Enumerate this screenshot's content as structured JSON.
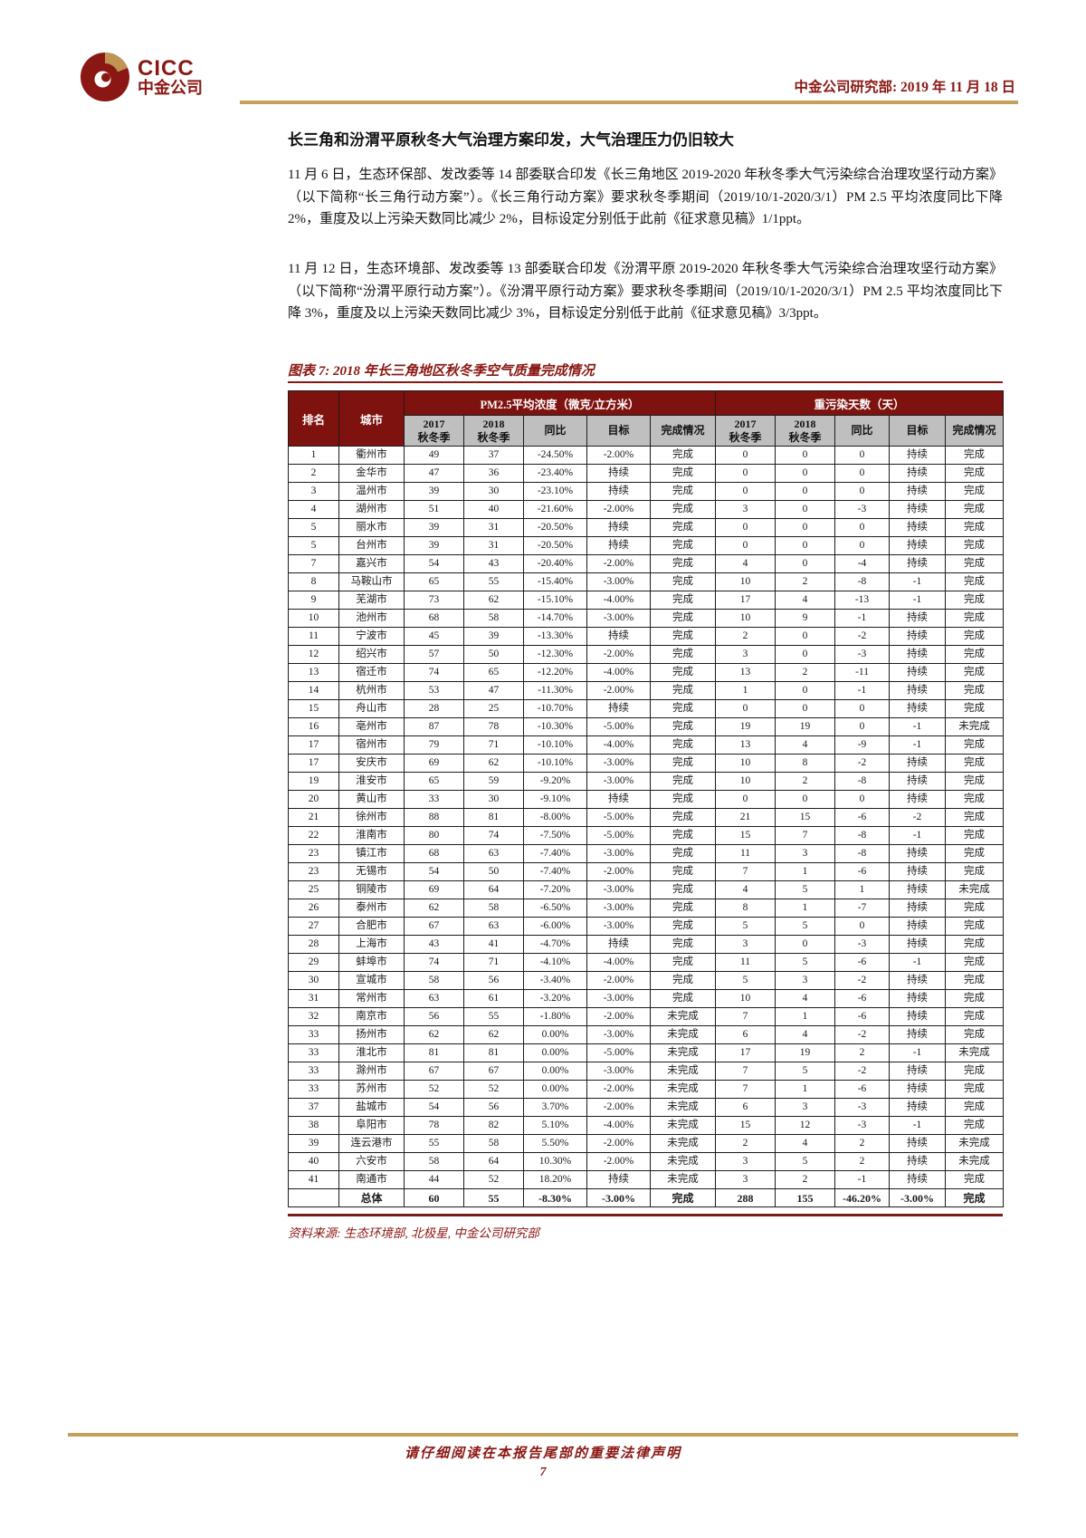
{
  "brand": {
    "logo_en": "CICC",
    "logo_cn": "中金公司"
  },
  "header": {
    "right_text": "中金公司研究部: 2019 年 11 月 18 日"
  },
  "content": {
    "title": "长三角和汾渭平原秋冬大气治理方案印发，大气治理压力仍旧较大",
    "paragraphs": [
      "11 月 6 日，生态环保部、发改委等 14 部委联合印发《长三角地区 2019-2020 年秋冬季大气污染综合治理攻坚行动方案》（以下简称“长三角行动方案”）。《长三角行动方案》要求秋冬季期间（2019/10/1-2020/3/1）PM 2.5 平均浓度同比下降 2%，重度及以上污染天数同比减少 2%，目标设定分别低于此前《征求意见稿》1/1ppt。",
      "11 月 12 日，生态环境部、发改委等 13 部委联合印发《汾渭平原 2019-2020 年秋冬季大气污染综合治理攻坚行动方案》（以下简称“汾渭平原行动方案”）。《汾渭平原行动方案》要求秋冬季期间（2019/10/1-2020/3/1）PM 2.5 平均浓度同比下降 3%，重度及以上污染天数同比减少 3%，目标设定分别低于此前《征求意见稿》3/3ppt。"
    ]
  },
  "figure": {
    "caption": "图表 7: 2018 年长三角地区秋冬季空气质量完成情况",
    "source": "资料来源: 生态环境部, 北极星, 中金公司研究部"
  },
  "table": {
    "columns": {
      "rank": "排名",
      "city": "城市",
      "group_pm": "PM2.5平均浓度（微克/立方米）",
      "group_days": "重污染天数（天）"
    },
    "sub_headers": [
      "2017\n秋冬季",
      "2018\n秋冬季",
      "同比",
      "目标",
      "完成情况",
      "2017\n秋冬季",
      "2018\n秋冬季",
      "同比",
      "目标",
      "完成情况"
    ],
    "rows": [
      [
        "1",
        "衢州市",
        "49",
        "37",
        "-24.50%",
        "-2.00%",
        "完成",
        "0",
        "0",
        "0",
        "持续",
        "完成"
      ],
      [
        "2",
        "金华市",
        "47",
        "36",
        "-23.40%",
        "持续",
        "完成",
        "0",
        "0",
        "0",
        "持续",
        "完成"
      ],
      [
        "3",
        "温州市",
        "39",
        "30",
        "-23.10%",
        "持续",
        "完成",
        "0",
        "0",
        "0",
        "持续",
        "完成"
      ],
      [
        "4",
        "湖州市",
        "51",
        "40",
        "-21.60%",
        "-2.00%",
        "完成",
        "3",
        "0",
        "-3",
        "持续",
        "完成"
      ],
      [
        "5",
        "丽水市",
        "39",
        "31",
        "-20.50%",
        "持续",
        "完成",
        "0",
        "0",
        "0",
        "持续",
        "完成"
      ],
      [
        "5",
        "台州市",
        "39",
        "31",
        "-20.50%",
        "持续",
        "完成",
        "0",
        "0",
        "0",
        "持续",
        "完成"
      ],
      [
        "7",
        "嘉兴市",
        "54",
        "43",
        "-20.40%",
        "-2.00%",
        "完成",
        "4",
        "0",
        "-4",
        "持续",
        "完成"
      ],
      [
        "8",
        "马鞍山市",
        "65",
        "55",
        "-15.40%",
        "-3.00%",
        "完成",
        "10",
        "2",
        "-8",
        "-1",
        "完成"
      ],
      [
        "9",
        "芜湖市",
        "73",
        "62",
        "-15.10%",
        "-4.00%",
        "完成",
        "17",
        "4",
        "-13",
        "-1",
        "完成"
      ],
      [
        "10",
        "池州市",
        "68",
        "58",
        "-14.70%",
        "-3.00%",
        "完成",
        "10",
        "9",
        "-1",
        "持续",
        "完成"
      ],
      [
        "11",
        "宁波市",
        "45",
        "39",
        "-13.30%",
        "持续",
        "完成",
        "2",
        "0",
        "-2",
        "持续",
        "完成"
      ],
      [
        "12",
        "绍兴市",
        "57",
        "50",
        "-12.30%",
        "-2.00%",
        "完成",
        "3",
        "0",
        "-3",
        "持续",
        "完成"
      ],
      [
        "13",
        "宿迁市",
        "74",
        "65",
        "-12.20%",
        "-4.00%",
        "完成",
        "13",
        "2",
        "-11",
        "持续",
        "完成"
      ],
      [
        "14",
        "杭州市",
        "53",
        "47",
        "-11.30%",
        "-2.00%",
        "完成",
        "1",
        "0",
        "-1",
        "持续",
        "完成"
      ],
      [
        "15",
        "舟山市",
        "28",
        "25",
        "-10.70%",
        "持续",
        "完成",
        "0",
        "0",
        "0",
        "持续",
        "完成"
      ],
      [
        "16",
        "亳州市",
        "87",
        "78",
        "-10.30%",
        "-5.00%",
        "完成",
        "19",
        "19",
        "0",
        "-1",
        "未完成"
      ],
      [
        "17",
        "宿州市",
        "79",
        "71",
        "-10.10%",
        "-4.00%",
        "完成",
        "13",
        "4",
        "-9",
        "-1",
        "完成"
      ],
      [
        "17",
        "安庆市",
        "69",
        "62",
        "-10.10%",
        "-3.00%",
        "完成",
        "10",
        "8",
        "-2",
        "持续",
        "完成"
      ],
      [
        "19",
        "淮安市",
        "65",
        "59",
        "-9.20%",
        "-3.00%",
        "完成",
        "10",
        "2",
        "-8",
        "持续",
        "完成"
      ],
      [
        "20",
        "黄山市",
        "33",
        "30",
        "-9.10%",
        "持续",
        "完成",
        "0",
        "0",
        "0",
        "持续",
        "完成"
      ],
      [
        "21",
        "徐州市",
        "88",
        "81",
        "-8.00%",
        "-5.00%",
        "完成",
        "21",
        "15",
        "-6",
        "-2",
        "完成"
      ],
      [
        "22",
        "淮南市",
        "80",
        "74",
        "-7.50%",
        "-5.00%",
        "完成",
        "15",
        "7",
        "-8",
        "-1",
        "完成"
      ],
      [
        "23",
        "镇江市",
        "68",
        "63",
        "-7.40%",
        "-3.00%",
        "完成",
        "11",
        "3",
        "-8",
        "持续",
        "完成"
      ],
      [
        "23",
        "无锡市",
        "54",
        "50",
        "-7.40%",
        "-2.00%",
        "完成",
        "7",
        "1",
        "-6",
        "持续",
        "完成"
      ],
      [
        "25",
        "铜陵市",
        "69",
        "64",
        "-7.20%",
        "-3.00%",
        "完成",
        "4",
        "5",
        "1",
        "持续",
        "未完成"
      ],
      [
        "26",
        "泰州市",
        "62",
        "58",
        "-6.50%",
        "-3.00%",
        "完成",
        "8",
        "1",
        "-7",
        "持续",
        "完成"
      ],
      [
        "27",
        "合肥市",
        "67",
        "63",
        "-6.00%",
        "-3.00%",
        "完成",
        "5",
        "5",
        "0",
        "持续",
        "完成"
      ],
      [
        "28",
        "上海市",
        "43",
        "41",
        "-4.70%",
        "持续",
        "完成",
        "3",
        "0",
        "-3",
        "持续",
        "完成"
      ],
      [
        "29",
        "蚌埠市",
        "74",
        "71",
        "-4.10%",
        "-4.00%",
        "完成",
        "11",
        "5",
        "-6",
        "-1",
        "完成"
      ],
      [
        "30",
        "宣城市",
        "58",
        "56",
        "-3.40%",
        "-2.00%",
        "完成",
        "5",
        "3",
        "-2",
        "持续",
        "完成"
      ],
      [
        "31",
        "常州市",
        "63",
        "61",
        "-3.20%",
        "-3.00%",
        "完成",
        "10",
        "4",
        "-6",
        "持续",
        "完成"
      ],
      [
        "32",
        "南京市",
        "56",
        "55",
        "-1.80%",
        "-2.00%",
        "未完成",
        "7",
        "1",
        "-6",
        "持续",
        "完成"
      ],
      [
        "33",
        "扬州市",
        "62",
        "62",
        "0.00%",
        "-3.00%",
        "未完成",
        "6",
        "4",
        "-2",
        "持续",
        "完成"
      ],
      [
        "33",
        "淮北市",
        "81",
        "81",
        "0.00%",
        "-5.00%",
        "未完成",
        "17",
        "19",
        "2",
        "-1",
        "未完成"
      ],
      [
        "33",
        "滁州市",
        "67",
        "67",
        "0.00%",
        "-3.00%",
        "未完成",
        "7",
        "5",
        "-2",
        "持续",
        "完成"
      ],
      [
        "33",
        "苏州市",
        "52",
        "52",
        "0.00%",
        "-2.00%",
        "未完成",
        "7",
        "1",
        "-6",
        "持续",
        "完成"
      ],
      [
        "37",
        "盐城市",
        "54",
        "56",
        "3.70%",
        "-2.00%",
        "未完成",
        "6",
        "3",
        "-3",
        "持续",
        "完成"
      ],
      [
        "38",
        "阜阳市",
        "78",
        "82",
        "5.10%",
        "-4.00%",
        "未完成",
        "15",
        "12",
        "-3",
        "-1",
        "完成"
      ],
      [
        "39",
        "连云港市",
        "55",
        "58",
        "5.50%",
        "-2.00%",
        "未完成",
        "2",
        "4",
        "2",
        "持续",
        "未完成"
      ],
      [
        "40",
        "六安市",
        "58",
        "64",
        "10.30%",
        "-2.00%",
        "未完成",
        "3",
        "5",
        "2",
        "持续",
        "未完成"
      ],
      [
        "41",
        "南通市",
        "44",
        "52",
        "18.20%",
        "持续",
        "未完成",
        "3",
        "2",
        "-1",
        "持续",
        "完成"
      ]
    ],
    "total_row": [
      "",
      "总体",
      "60",
      "55",
      "-8.30%",
      "-3.00%",
      "完成",
      "288",
      "155",
      "-46.20%",
      "-3.00%",
      "完成"
    ]
  },
  "footer": {
    "legal": "请仔细阅读在本报告尾部的重要法律声明",
    "page_number": "7"
  },
  "colors": {
    "brand_maroon": "#8a1713",
    "table_header_bg": "#7e120e",
    "subheader_bg": "#bfbfbf",
    "gold_line": "#c5a059"
  }
}
